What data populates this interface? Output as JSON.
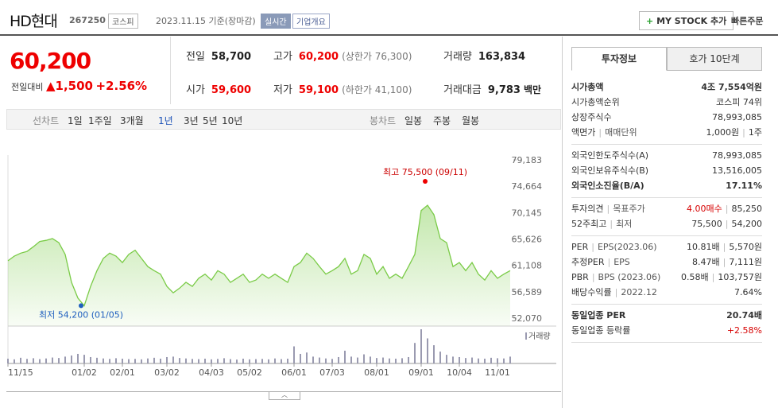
{
  "header": {
    "title": "HD현대",
    "code": "267250",
    "market": "코스피",
    "date": "2023.11.15 기준(장마감)",
    "realtime": "실시간",
    "overview": "기업개요",
    "mystock": "MY STOCK 추가",
    "quick_order": "빠른주문"
  },
  "quote": {
    "price": "60,200",
    "change_label": "전일대비",
    "change": "1,500",
    "rate": "+2.56%",
    "items": [
      {
        "label": "전일",
        "value": "58,700"
      },
      {
        "label": "고가",
        "value": "60,200",
        "note": "(상한가 76,300)"
      },
      {
        "label": "거래량",
        "value": "163,834"
      },
      {
        "label": "시가",
        "value": "59,600"
      },
      {
        "label": "저가",
        "value": "59,100",
        "note": "(하한가 41,100)"
      },
      {
        "label": "거래대금",
        "value": "9,783",
        "note": "백만"
      }
    ]
  },
  "tabs": {
    "line_label": "선차트",
    "line_items": [
      "1일",
      "1주일",
      "3개월",
      "1년",
      "3년",
      "5년",
      "10년"
    ],
    "selected": 3,
    "candle_label": "봉차트",
    "candle_items": [
      "일봉",
      "주봉",
      "월봉"
    ]
  },
  "chart_data": {
    "type": "line",
    "color": "#7acb47",
    "categories": [
      "11/15",
      null,
      null,
      null,
      null,
      null,
      null,
      null,
      null,
      null,
      null,
      null,
      "01/02",
      null,
      null,
      null,
      null,
      null,
      "02/01",
      null,
      null,
      null,
      null,
      null,
      null,
      "03/02",
      null,
      null,
      null,
      null,
      null,
      null,
      "04/03",
      null,
      null,
      null,
      null,
      null,
      "05/02",
      null,
      null,
      null,
      null,
      null,
      null,
      "06/01",
      null,
      null,
      null,
      null,
      null,
      "07/03",
      null,
      null,
      null,
      null,
      null,
      null,
      "08/01",
      null,
      null,
      null,
      null,
      null,
      null,
      "09/01",
      null,
      null,
      null,
      null,
      null,
      "10/04",
      null,
      null,
      null,
      null,
      null,
      "11/01",
      null,
      null
    ],
    "values": [
      61900,
      62700,
      63200,
      63500,
      64300,
      65200,
      65400,
      65700,
      65000,
      63000,
      58200,
      55500,
      54200,
      57500,
      60200,
      62300,
      63200,
      62700,
      61600,
      63000,
      63700,
      62300,
      60900,
      60200,
      59600,
      57500,
      56400,
      57200,
      58200,
      57500,
      58900,
      59600,
      58600,
      60200,
      59600,
      58200,
      58900,
      59600,
      58200,
      58600,
      59600,
      58900,
      59600,
      58900,
      58200,
      60900,
      61600,
      63200,
      62300,
      60900,
      59600,
      60200,
      60900,
      62300,
      59600,
      60200,
      63000,
      62300,
      59600,
      60900,
      58900,
      59600,
      58900,
      60900,
      63000,
      70500,
      71400,
      69800,
      65700,
      65000,
      60900,
      61600,
      60200,
      61600,
      59600,
      58600,
      60200,
      58900,
      59600,
      60200
    ],
    "ylim": [
      52070,
      79183
    ],
    "yticks": [
      {
        "value": 52070,
        "label": "52,070"
      },
      {
        "value": 56589,
        "label": "56,589"
      },
      {
        "value": 61108,
        "label": "61,108"
      },
      {
        "value": 65626,
        "label": "65,626"
      },
      {
        "value": 70145,
        "label": "70,145"
      },
      {
        "value": 74664,
        "label": "74,664"
      },
      {
        "value": 79183,
        "label": "79,183"
      }
    ],
    "high": {
      "value": 75500,
      "label": "최고 75,500 (09/11)"
    },
    "low": {
      "value": 54200,
      "label": "최저 54,200 (01/05)"
    },
    "volume": {
      "name": "거래량",
      "color": "#9a9ab0",
      "values": [
        210000,
        180000,
        250000,
        200000,
        230000,
        190000,
        220000,
        260000,
        240000,
        300000,
        350000,
        420000,
        380000,
        280000,
        250000,
        220000,
        200000,
        230000,
        210000,
        190000,
        200000,
        180000,
        220000,
        250000,
        210000,
        280000,
        300000,
        240000,
        220000,
        200000,
        190000,
        210000,
        180000,
        200000,
        230000,
        190000,
        170000,
        210000,
        180000,
        190000,
        200000,
        180000,
        220000,
        190000,
        210000,
        750000,
        420000,
        480000,
        300000,
        260000,
        220000,
        200000,
        280000,
        560000,
        300000,
        260000,
        400000,
        300000,
        240000,
        260000,
        220000,
        210000,
        230000,
        280000,
        900000,
        1500000,
        1100000,
        800000,
        520000,
        380000,
        300000,
        280000,
        240000,
        260000,
        220000,
        210000,
        250000,
        230000,
        220000,
        300000
      ]
    }
  },
  "info": {
    "tabs": [
      "투자정보",
      "호가 10단계"
    ],
    "groups": [
      [
        {
          "label": [
            "시가총액"
          ],
          "value": [
            "4조 7,554억원"
          ],
          "bold": true
        },
        {
          "label": [
            "시가총액순위"
          ],
          "value": [
            "코스피 74위"
          ]
        },
        {
          "label": [
            "상장주식수"
          ],
          "value": [
            "78,993,085"
          ]
        },
        {
          "label": [
            "액면가",
            "매매단위"
          ],
          "value": [
            "1,000원",
            "1주"
          ]
        }
      ],
      [
        {
          "label": [
            "외국인한도주식수(A)"
          ],
          "value": [
            "78,993,085"
          ]
        },
        {
          "label": [
            "외국인보유주식수(B)"
          ],
          "value": [
            "13,516,005"
          ]
        },
        {
          "label": [
            "외국인소진율(B/A)"
          ],
          "value": [
            "17.11%"
          ],
          "bold": true
        }
      ],
      [
        {
          "label": [
            "투자의견",
            "목표주가"
          ],
          "value": [
            "4.00매수",
            "85,250"
          ],
          "color": "#d60000"
        },
        {
          "label": [
            "52주최고",
            "최저"
          ],
          "value": [
            "75,500",
            "54,200"
          ]
        }
      ],
      [
        {
          "label": [
            "PER",
            "EPS(2023.06)"
          ],
          "value": [
            "10.81배",
            "5,570원"
          ]
        },
        {
          "label": [
            "추정PER",
            "EPS"
          ],
          "value": [
            "8.47배",
            "7,111원"
          ]
        },
        {
          "label": [
            "PBR",
            "BPS (2023.06)"
          ],
          "value": [
            "0.58배",
            "103,757원"
          ]
        },
        {
          "label": [
            "배당수익률",
            "2022.12"
          ],
          "value": [
            "7.64%"
          ]
        }
      ],
      [
        {
          "label": [
            "동일업종 PER"
          ],
          "value": [
            "20.74배"
          ],
          "bold": true
        },
        {
          "label": [
            "동일업종 등락률"
          ],
          "value": [
            "+2.58%"
          ],
          "color": "#d60000"
        }
      ]
    ]
  }
}
